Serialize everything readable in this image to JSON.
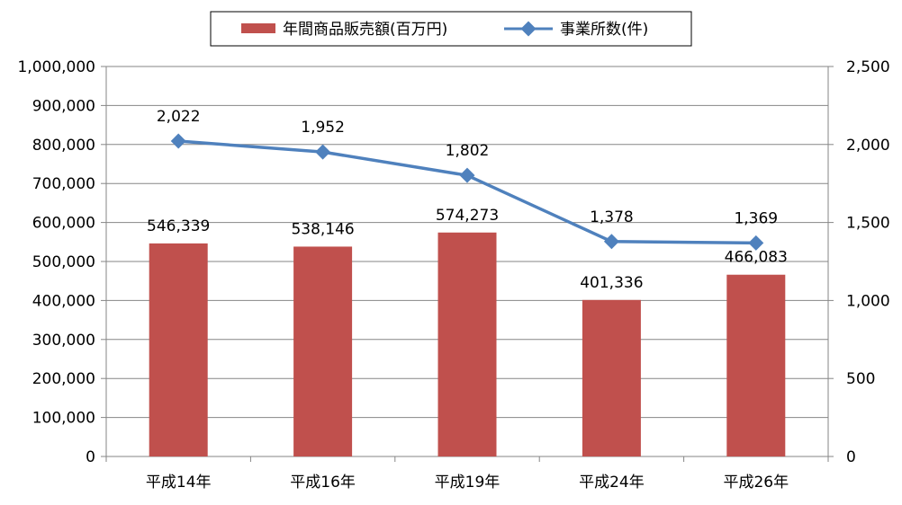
{
  "chart_data": {
    "type": "bar",
    "categories": [
      "平成14年",
      "平成16年",
      "平成19年",
      "平成24年",
      "平成26年"
    ],
    "series": [
      {
        "name": "年間商品販売額(百万円)",
        "type": "bar",
        "axis": "left",
        "color": "#C0504D",
        "values": [
          546339,
          538146,
          574273,
          401336,
          466083
        ],
        "labels": [
          "546,339",
          "538,146",
          "574,273",
          "401,336",
          "466,083"
        ]
      },
      {
        "name": "事業所数(件)",
        "type": "line",
        "axis": "right",
        "color": "#4F81BD",
        "values": [
          2022,
          1952,
          1802,
          1378,
          1369
        ],
        "labels": [
          "2,022",
          "1,952",
          "1,802",
          "1,378",
          "1,369"
        ]
      }
    ],
    "y_left": {
      "min": 0,
      "max": 1000000,
      "ticks": [
        "0",
        "100,000",
        "200,000",
        "300,000",
        "400,000",
        "500,000",
        "600,000",
        "700,000",
        "800,000",
        "900,000",
        "1,000,000"
      ]
    },
    "y_right": {
      "min": 0,
      "max": 2500,
      "ticks": [
        "0",
        "500",
        "1,000",
        "1,500",
        "2,000",
        "2,500"
      ]
    },
    "grid": true,
    "legend_position": "top"
  }
}
